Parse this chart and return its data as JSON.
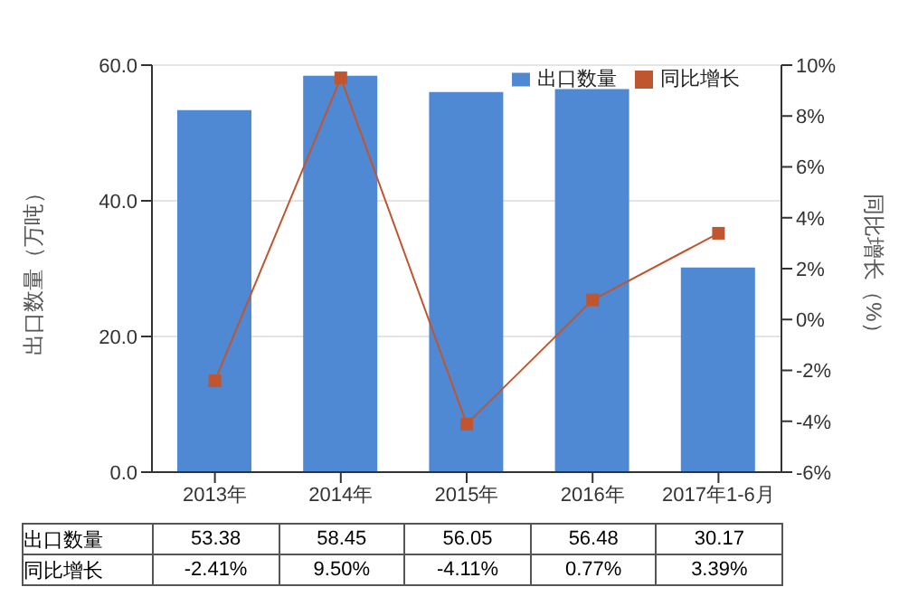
{
  "chart_data": {
    "type": "bar",
    "categories": [
      "2013年",
      "2014年",
      "2015年",
      "2016年",
      "2017年1-6月"
    ],
    "ylabel": "出口数量（万吨）",
    "y2label": "同比增长（%）",
    "series": [
      {
        "name": "出口数量",
        "color": "#4f88d3",
        "values": [
          53.38,
          58.45,
          56.05,
          56.48,
          30.17
        ],
        "value_labels": [
          "53.38",
          "58.45",
          "56.05",
          "56.48",
          "30.17"
        ]
      },
      {
        "name": "同比增长",
        "type": "line",
        "axis": "y2",
        "color": "#c0562f",
        "values": [
          -2.41,
          9.5,
          -4.11,
          0.77,
          3.39
        ],
        "value_labels": [
          "-2.41%",
          "9.50%",
          "-4.11%",
          "0.77%",
          "3.39%"
        ]
      }
    ],
    "ylim": [
      0,
      60
    ],
    "yticks": [
      {
        "value": 0,
        "label": "0.0"
      },
      {
        "value": 20,
        "label": "20.0"
      },
      {
        "value": 40,
        "label": "40.0"
      },
      {
        "value": 60,
        "label": "60.0"
      }
    ],
    "y2lim": [
      -6,
      10
    ],
    "y2ticks": [
      {
        "value": -6,
        "label": "-6%"
      },
      {
        "value": -4,
        "label": "-4%"
      },
      {
        "value": -2,
        "label": "-2%"
      },
      {
        "value": 0,
        "label": "0%"
      },
      {
        "value": 2,
        "label": "2%"
      },
      {
        "value": 4,
        "label": "4%"
      },
      {
        "value": 6,
        "label": "6%"
      },
      {
        "value": 8,
        "label": "8%"
      },
      {
        "value": 10,
        "label": "10%"
      }
    ],
    "grid": "y",
    "legend": "top right",
    "marker": "square",
    "line_style": "solid"
  }
}
